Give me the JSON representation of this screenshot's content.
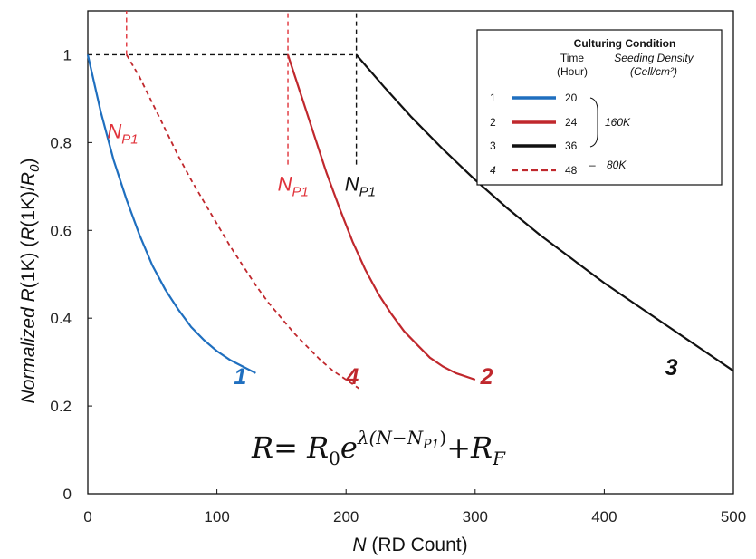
{
  "chart_data": {
    "type": "line",
    "xlabel": "(RD Count)",
    "xlabel_var": "N",
    "ylabel_prefix": "Normalized",
    "ylabel_var": "R",
    "ylabel_rest": "(1K)  (",
    "ylabel_rest2": "(1K)/",
    "ylabel_r0": "R",
    "ylabel_r0_sub": "0",
    "ylabel_close": ")",
    "xlim": [
      0,
      500
    ],
    "ylim": [
      0,
      1.1
    ],
    "xticks": [
      "0",
      "100",
      "200",
      "300",
      "400",
      "500"
    ],
    "yticks": [
      "0",
      "0.2",
      "0.4",
      "0.6",
      "0.8",
      "1"
    ],
    "grid": false,
    "legend_position": "top-right",
    "series": [
      {
        "number": "1",
        "time": "20",
        "color": "#1f6fbf",
        "dash": "solid",
        "x": [
          0,
          10,
          20,
          30,
          40,
          50,
          60,
          70,
          80,
          90,
          100,
          110,
          120,
          130
        ],
        "y": [
          1.0,
          0.87,
          0.76,
          0.67,
          0.59,
          0.52,
          0.465,
          0.42,
          0.38,
          0.35,
          0.325,
          0.305,
          0.29,
          0.275
        ]
      },
      {
        "number": "2",
        "time": "24",
        "color": "#c0282d",
        "dash": "solid",
        "x": [
          155,
          165,
          175,
          185,
          195,
          205,
          215,
          225,
          235,
          245,
          255,
          265,
          275,
          285,
          300
        ],
        "y": [
          1.0,
          0.91,
          0.82,
          0.73,
          0.65,
          0.575,
          0.51,
          0.455,
          0.41,
          0.37,
          0.34,
          0.31,
          0.29,
          0.275,
          0.26
        ]
      },
      {
        "number": "3",
        "time": "36",
        "color": "#111111",
        "dash": "solid",
        "x": [
          208,
          230,
          250,
          275,
          300,
          325,
          350,
          375,
          400,
          425,
          450,
          475,
          500
        ],
        "y": [
          1.0,
          0.925,
          0.86,
          0.785,
          0.715,
          0.65,
          0.59,
          0.535,
          0.48,
          0.43,
          0.38,
          0.33,
          0.28
        ]
      },
      {
        "number": "4",
        "time": "48",
        "color": "#c0282d",
        "dash": "dashed",
        "x": [
          30,
          40,
          50,
          60,
          70,
          80,
          90,
          100,
          110,
          120,
          130,
          140,
          150,
          160,
          170,
          180,
          190,
          200,
          210
        ],
        "y": [
          1.0,
          0.95,
          0.89,
          0.83,
          0.77,
          0.715,
          0.665,
          0.615,
          0.565,
          0.52,
          0.475,
          0.435,
          0.4,
          0.365,
          0.335,
          0.305,
          0.28,
          0.26,
          0.24
        ]
      }
    ],
    "reference_lines": [
      {
        "type": "horizontal",
        "y": 1,
        "x_from": 0,
        "x_to": 208,
        "color": "#111111"
      },
      {
        "type": "vertical",
        "x": 30,
        "y_from": 1,
        "y_to": 1.1,
        "color": "#e0323a"
      },
      {
        "type": "vertical",
        "x": 155,
        "y_from": 0.75,
        "y_to": 1.1,
        "color": "#e0323a"
      },
      {
        "type": "vertical",
        "x": 208,
        "y_from": 0.75,
        "y_to": 1.1,
        "color": "#111111"
      }
    ],
    "annotations": [
      {
        "text": "N",
        "sub": "P1",
        "x": 15,
        "y": 0.81,
        "color": "#e0323a"
      },
      {
        "text": "N",
        "sub": "P1",
        "x": 147,
        "y": 0.69,
        "color": "#e0323a"
      },
      {
        "text": "N",
        "sub": "P1",
        "x": 199,
        "y": 0.69,
        "color": "#111111"
      }
    ],
    "curve_labels": [
      {
        "text": "1",
        "x": 118,
        "y": 0.25,
        "color": "#1f6fbf"
      },
      {
        "text": "4",
        "x": 205,
        "y": 0.25,
        "color": "#c0282d"
      },
      {
        "text": "2",
        "x": 309,
        "y": 0.25,
        "color": "#c0282d"
      },
      {
        "text": "3",
        "x": 452,
        "y": 0.27,
        "color": "#111111"
      }
    ],
    "formula": {
      "lhs": "R",
      "eq": "= ",
      "r0": "R",
      "r0_sub": "0",
      "e": "e",
      "exp": "λ(N−N",
      "exp_sub": "P1",
      "exp_close": ")",
      "plus": "+",
      "rf": "R",
      "rf_sub": "F"
    },
    "legend": {
      "title": "Culturing Condition",
      "col_time": "Time",
      "col_time_unit": "(Hour)",
      "col_density": "Seeding Density",
      "col_density_unit": "(Cell/cm²)",
      "density_group1": "160K",
      "density_group2": "80K",
      "dash_sep": "–"
    }
  }
}
